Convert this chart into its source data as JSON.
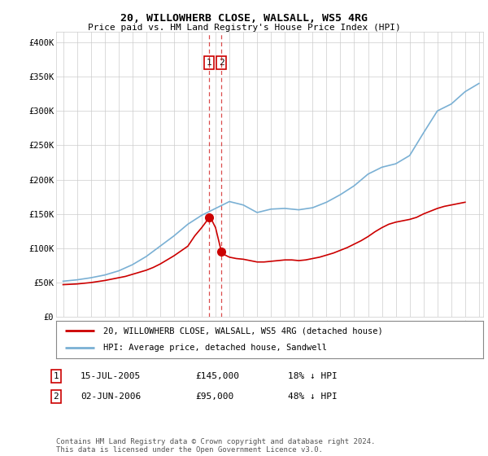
{
  "title": "20, WILLOWHERB CLOSE, WALSALL, WS5 4RG",
  "subtitle": "Price paid vs. HM Land Registry's House Price Index (HPI)",
  "ylabel_ticks": [
    "£0",
    "£50K",
    "£100K",
    "£150K",
    "£200K",
    "£250K",
    "£300K",
    "£350K",
    "£400K"
  ],
  "ylabel_values": [
    0,
    50000,
    100000,
    150000,
    200000,
    250000,
    300000,
    350000,
    400000
  ],
  "ylim": [
    0,
    415000
  ],
  "xlim_start": 1994.5,
  "xlim_end": 2025.3,
  "legend_line1": "20, WILLOWHERB CLOSE, WALSALL, WS5 4RG (detached house)",
  "legend_line2": "HPI: Average price, detached house, Sandwell",
  "transaction1_label": "1",
  "transaction1_date": "15-JUL-2005",
  "transaction1_price": "£145,000",
  "transaction1_hpi": "18% ↓ HPI",
  "transaction2_label": "2",
  "transaction2_date": "02-JUN-2006",
  "transaction2_price": "£95,000",
  "transaction2_hpi": "48% ↓ HPI",
  "footer": "Contains HM Land Registry data © Crown copyright and database right 2024.\nThis data is licensed under the Open Government Licence v3.0.",
  "hpi_color": "#7ab0d4",
  "price_color": "#cc0000",
  "vline_color": "#cc0000",
  "vline_x1": 2005.54,
  "vline_x2": 2006.42,
  "dot1_x": 2005.54,
  "dot1_y": 145000,
  "dot2_x": 2006.42,
  "dot2_y": 95000,
  "background_color": "#ffffff",
  "grid_color": "#cccccc",
  "years_hpi": [
    1995,
    1996,
    1997,
    1998,
    1999,
    2000,
    2001,
    2002,
    2003,
    2004,
    2005,
    2006,
    2007,
    2008,
    2009,
    2010,
    2011,
    2012,
    2013,
    2014,
    2015,
    2016,
    2017,
    2018,
    2019,
    2020,
    2021,
    2022,
    2023,
    2024,
    2025
  ],
  "hpi_values": [
    52000,
    54000,
    57000,
    61000,
    67000,
    76000,
    88000,
    103000,
    118000,
    135000,
    148000,
    158000,
    168000,
    163000,
    152000,
    157000,
    158000,
    156000,
    159000,
    167000,
    178000,
    191000,
    208000,
    218000,
    223000,
    235000,
    268000,
    300000,
    310000,
    328000,
    340000
  ],
  "years_price": [
    1995.0,
    1995.5,
    1996.0,
    1996.5,
    1997.0,
    1997.5,
    1998.0,
    1998.5,
    1999.0,
    1999.5,
    2000.0,
    2000.5,
    2001.0,
    2001.5,
    2002.0,
    2002.5,
    2003.0,
    2003.5,
    2004.0,
    2004.5,
    2005.0,
    2005.3,
    2005.54,
    2005.7,
    2006.0,
    2006.42,
    2006.7,
    2007.0,
    2007.5,
    2008.0,
    2008.5,
    2009.0,
    2009.5,
    2010.0,
    2010.5,
    2011.0,
    2011.5,
    2012.0,
    2012.5,
    2013.0,
    2013.5,
    2014.0,
    2014.5,
    2015.0,
    2015.5,
    2016.0,
    2016.5,
    2017.0,
    2017.5,
    2018.0,
    2018.5,
    2019.0,
    2019.5,
    2020.0,
    2020.5,
    2021.0,
    2021.5,
    2022.0,
    2022.5,
    2023.0,
    2023.5,
    2024.0
  ],
  "price_values": [
    47000,
    47500,
    48000,
    49000,
    50000,
    51500,
    53000,
    55000,
    57000,
    59000,
    62000,
    65000,
    68000,
    72000,
    77000,
    83000,
    89000,
    96000,
    103000,
    118000,
    130000,
    138000,
    145000,
    142000,
    130000,
    95000,
    90000,
    87000,
    85000,
    84000,
    82000,
    80000,
    80000,
    81000,
    82000,
    83000,
    83000,
    82000,
    83000,
    85000,
    87000,
    90000,
    93000,
    97000,
    101000,
    106000,
    111000,
    117000,
    124000,
    130000,
    135000,
    138000,
    140000,
    142000,
    145000,
    150000,
    154000,
    158000,
    161000,
    163000,
    165000,
    167000
  ]
}
